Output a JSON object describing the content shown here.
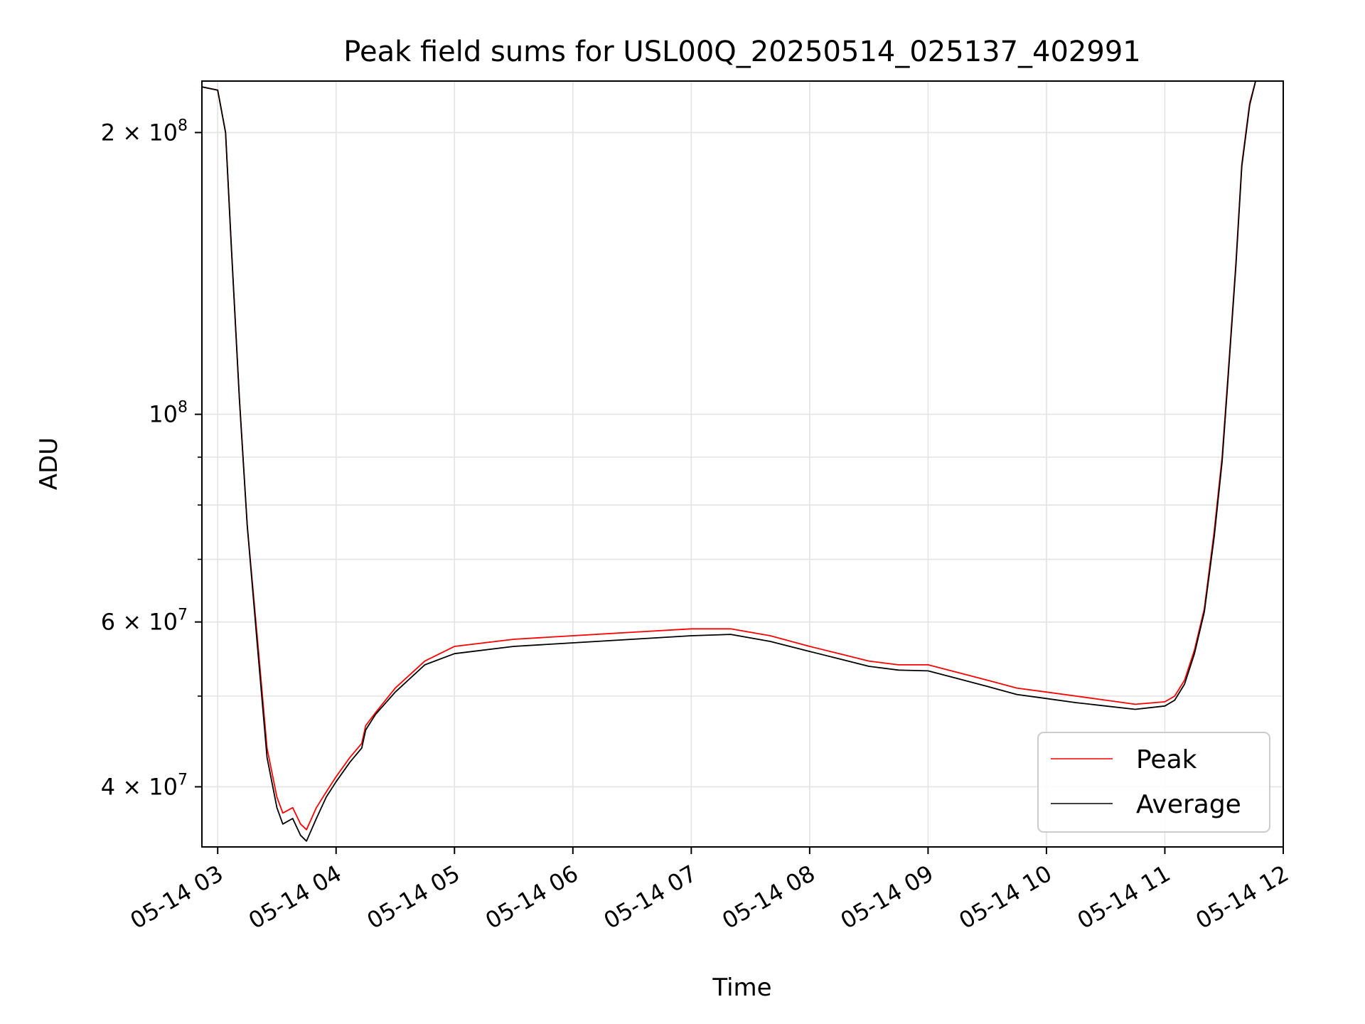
{
  "chart_data": {
    "type": "line",
    "title": "Peak field sums for USL00Q_20250514_025137_402991",
    "xlabel": "Time",
    "ylabel": "ADU",
    "x_scale": "time",
    "y_scale": "log",
    "xlim": [
      "2025-05-14 02:52",
      "2025-05-14 12:00"
    ],
    "ylim": [
      34500000,
      227000000
    ],
    "x_ticks": [
      "05-14 03",
      "05-14 04",
      "05-14 05",
      "05-14 06",
      "05-14 07",
      "05-14 08",
      "05-14 09",
      "05-14 10",
      "05-14 11",
      "05-14 12"
    ],
    "x_tick_times": [
      "2025-05-14 03:00",
      "2025-05-14 04:00",
      "2025-05-14 05:00",
      "2025-05-14 06:00",
      "2025-05-14 07:00",
      "2025-05-14 08:00",
      "2025-05-14 09:00",
      "2025-05-14 10:00",
      "2025-05-14 11:00",
      "2025-05-14 12:00"
    ],
    "y_major_ticks": [
      {
        "value": 40000000,
        "mantissa": "4",
        "exponent": "7"
      },
      {
        "value": 60000000,
        "mantissa": "6",
        "exponent": "7"
      },
      {
        "value": 100000000,
        "mantissa": "",
        "exponent": "8"
      },
      {
        "value": 200000000,
        "mantissa": "2",
        "exponent": "8"
      }
    ],
    "y_minor_ticks": [
      50000000,
      70000000,
      80000000,
      90000000
    ],
    "grid": true,
    "legend_position": "lower-right",
    "series": [
      {
        "name": "Peak",
        "color": "#ff0000",
        "x": [
          "2025-05-14 02:51",
          "2025-05-14 03:00",
          "2025-05-14 03:04",
          "2025-05-14 03:07",
          "2025-05-14 03:11",
          "2025-05-14 03:15",
          "2025-05-14 03:20",
          "2025-05-14 03:25",
          "2025-05-14 03:30",
          "2025-05-14 03:33",
          "2025-05-14 03:38",
          "2025-05-14 03:42",
          "2025-05-14 03:45",
          "2025-05-14 03:50",
          "2025-05-14 03:55",
          "2025-05-14 04:00",
          "2025-05-14 04:07",
          "2025-05-14 04:13",
          "2025-05-14 04:15",
          "2025-05-14 04:20",
          "2025-05-14 04:30",
          "2025-05-14 04:45",
          "2025-05-14 05:00",
          "2025-05-14 05:30",
          "2025-05-14 06:00",
          "2025-05-14 06:30",
          "2025-05-14 07:00",
          "2025-05-14 07:20",
          "2025-05-14 07:40",
          "2025-05-14 08:00",
          "2025-05-14 08:15",
          "2025-05-14 08:30",
          "2025-05-14 08:45",
          "2025-05-14 09:00",
          "2025-05-14 09:15",
          "2025-05-14 09:30",
          "2025-05-14 09:45",
          "2025-05-14 10:00",
          "2025-05-14 10:15",
          "2025-05-14 10:30",
          "2025-05-14 10:45",
          "2025-05-14 11:00",
          "2025-05-14 11:05",
          "2025-05-14 11:10",
          "2025-05-14 11:15",
          "2025-05-14 11:20",
          "2025-05-14 11:25",
          "2025-05-14 11:29",
          "2025-05-14 11:32",
          "2025-05-14 11:36",
          "2025-05-14 11:39",
          "2025-05-14 11:43",
          "2025-05-14 11:46"
        ],
        "y": [
          224000000,
          222000000,
          200000000,
          150000000,
          104000000,
          76000000,
          58000000,
          44000000,
          39000000,
          37500000,
          38000000,
          36500000,
          36000000,
          38000000,
          39500000,
          41000000,
          43000000,
          44500000,
          46500000,
          48000000,
          51000000,
          54500000,
          56500000,
          57500000,
          58000000,
          58500000,
          59000000,
          59000000,
          58000000,
          56500000,
          55500000,
          54500000,
          54000000,
          54000000,
          53000000,
          52000000,
          51000000,
          50500000,
          50000000,
          49500000,
          49000000,
          49300000,
          50000000,
          52000000,
          56000000,
          62000000,
          75000000,
          90000000,
          110000000,
          145000000,
          185000000,
          215000000,
          227000000
        ]
      },
      {
        "name": "Average",
        "color": "#000000",
        "x": [
          "2025-05-14 02:51",
          "2025-05-14 03:00",
          "2025-05-14 03:04",
          "2025-05-14 03:07",
          "2025-05-14 03:11",
          "2025-05-14 03:15",
          "2025-05-14 03:20",
          "2025-05-14 03:25",
          "2025-05-14 03:30",
          "2025-05-14 03:33",
          "2025-05-14 03:38",
          "2025-05-14 03:42",
          "2025-05-14 03:45",
          "2025-05-14 03:50",
          "2025-05-14 03:55",
          "2025-05-14 04:00",
          "2025-05-14 04:07",
          "2025-05-14 04:13",
          "2025-05-14 04:15",
          "2025-05-14 04:20",
          "2025-05-14 04:30",
          "2025-05-14 04:45",
          "2025-05-14 05:00",
          "2025-05-14 05:30",
          "2025-05-14 06:00",
          "2025-05-14 06:30",
          "2025-05-14 07:00",
          "2025-05-14 07:20",
          "2025-05-14 07:40",
          "2025-05-14 08:00",
          "2025-05-14 08:15",
          "2025-05-14 08:30",
          "2025-05-14 08:45",
          "2025-05-14 09:00",
          "2025-05-14 09:15",
          "2025-05-14 09:30",
          "2025-05-14 09:45",
          "2025-05-14 10:00",
          "2025-05-14 10:15",
          "2025-05-14 10:30",
          "2025-05-14 10:45",
          "2025-05-14 11:00",
          "2025-05-14 11:05",
          "2025-05-14 11:10",
          "2025-05-14 11:15",
          "2025-05-14 11:20",
          "2025-05-14 11:25",
          "2025-05-14 11:29",
          "2025-05-14 11:32",
          "2025-05-14 11:36",
          "2025-05-14 11:39",
          "2025-05-14 11:43",
          "2025-05-14 11:46"
        ],
        "y": [
          224000000,
          222000000,
          200000000,
          150000000,
          104000000,
          76000000,
          57000000,
          43000000,
          38000000,
          36500000,
          37000000,
          35500000,
          35000000,
          37000000,
          39000000,
          40500000,
          42500000,
          44000000,
          46000000,
          47800000,
          50500000,
          54000000,
          55500000,
          56500000,
          57000000,
          57500000,
          58000000,
          58200000,
          57200000,
          55800000,
          54800000,
          53800000,
          53300000,
          53200000,
          52200000,
          51200000,
          50200000,
          49700000,
          49200000,
          48800000,
          48400000,
          48800000,
          49500000,
          51500000,
          55500000,
          61500000,
          74000000,
          89000000,
          109000000,
          144000000,
          184000000,
          214000000,
          227000000
        ]
      }
    ]
  }
}
